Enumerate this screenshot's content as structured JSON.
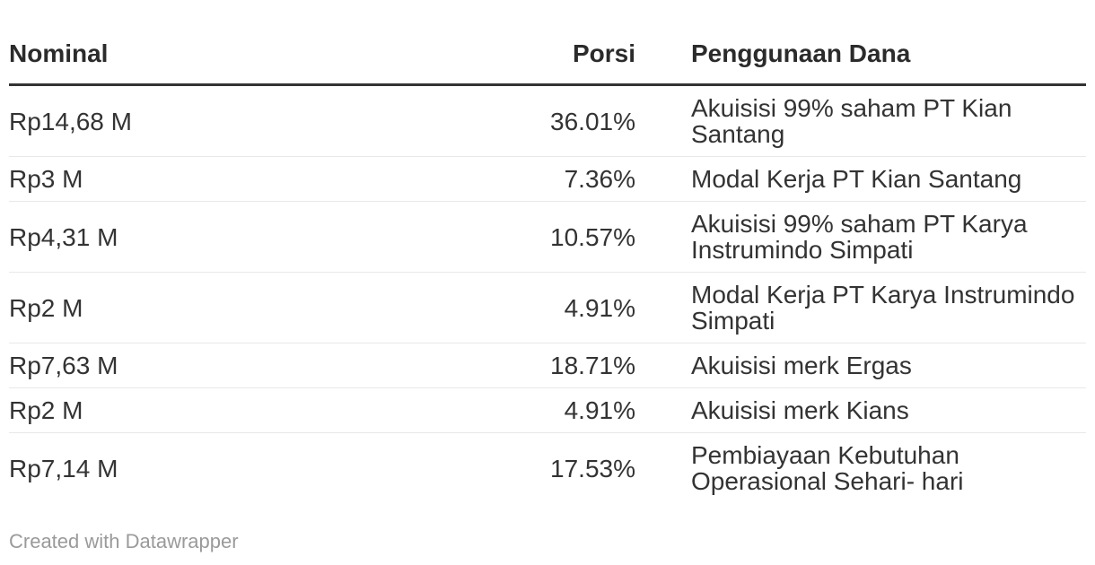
{
  "colors": {
    "background": "#ffffff",
    "header_text": "#2b2b2b",
    "body_text": "#333333",
    "header_rule": "#333333",
    "row_rule": "#e8e8e8",
    "attribution_text": "#9a9a9a"
  },
  "footer": {
    "attribution": "Created with Datawrapper"
  },
  "chart_data": {
    "type": "table",
    "columns": [
      "Nominal",
      "Porsi",
      "Penggunaan Dana"
    ],
    "column_alignments": [
      "left",
      "right",
      "left"
    ],
    "rows": [
      [
        "Rp14,68 M",
        "36.01%",
        "Akuisisi 99% saham PT Kian Santang"
      ],
      [
        "Rp3 M",
        "7.36%",
        "Modal Kerja PT Kian Santang"
      ],
      [
        "Rp4,31 M",
        "10.57%",
        "Akuisisi 99% saham PT Karya Instrumindo Simpati"
      ],
      [
        "Rp2 M",
        "4.91%",
        "Modal Kerja PT Karya Instrumindo Simpati"
      ],
      [
        "Rp7,63 M",
        "18.71%",
        "Akuisisi merk Ergas"
      ],
      [
        "Rp2 M",
        "4.91%",
        "Akuisisi merk Kians"
      ],
      [
        "Rp7,14 M",
        "17.53%",
        "Pembiayaan Kebutuhan Operasional Sehari- hari"
      ]
    ],
    "nominal_values_rp_miliar": [
      14.68,
      3,
      4.31,
      2,
      7.63,
      2,
      7.14
    ],
    "porsi_values_pct": [
      36.01,
      7.36,
      10.57,
      4.91,
      18.71,
      4.91,
      17.53
    ],
    "legend_position": "none",
    "grid": "row-rules-only"
  }
}
